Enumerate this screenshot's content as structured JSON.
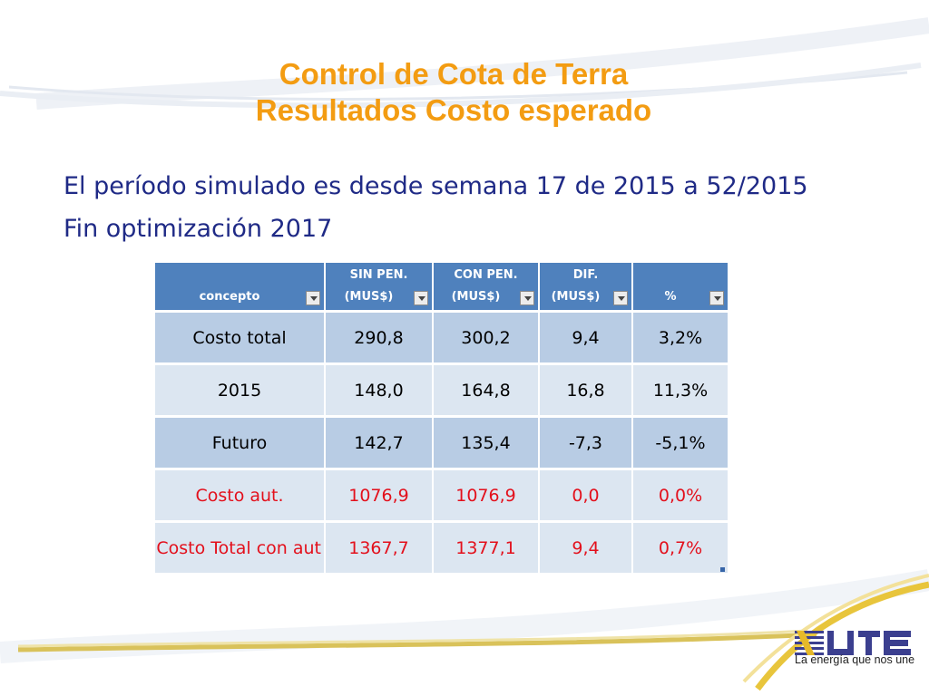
{
  "slide": {
    "title_line1": "Control de Cota de Terra",
    "title_line2": "Resultados Costo esperado",
    "subtitle_line1": "El período simulado es desde semana 17 de 2015 a 52/2015",
    "subtitle_line2": "Fin optimización 2017"
  },
  "table": {
    "headers": [
      {
        "line1": "",
        "line2": "concepto"
      },
      {
        "line1": "SIN PEN.",
        "line2": "(MUS$)"
      },
      {
        "line1": "CON PEN.",
        "line2": "(MUS$)"
      },
      {
        "line1": "DIF.",
        "line2": "(MUS$)"
      },
      {
        "line1": "",
        "line2": "%"
      }
    ],
    "rows": [
      {
        "concepto": "Costo total",
        "sin_pen": "290,8",
        "con_pen": "300,2",
        "dif": "9,4",
        "pct": "3,2%"
      },
      {
        "concepto": "2015",
        "sin_pen": "148,0",
        "con_pen": "164,8",
        "dif": "16,8",
        "pct": "11,3%"
      },
      {
        "concepto": "Futuro",
        "sin_pen": "142,7",
        "con_pen": "135,4",
        "dif": "-7,3",
        "pct": "-5,1%"
      },
      {
        "concepto": "Costo aut.",
        "sin_pen": "1076,9",
        "con_pen": "1076,9",
        "dif": "0,0",
        "pct": "0,0%"
      },
      {
        "concepto": "Costo Total con aut",
        "sin_pen": "1367,7",
        "con_pen": "1377,1",
        "dif": "9,4",
        "pct": "0,7%"
      }
    ]
  },
  "logo": {
    "brand": "UTE",
    "tagline": "La energía que nos une"
  },
  "colors": {
    "title": "#f39c12",
    "subtitle": "#1f2a86",
    "header_bg": "#4f81bd",
    "row_dark": "#b8cce4",
    "row_light": "#dce6f1",
    "red_text": "#e3101c"
  }
}
